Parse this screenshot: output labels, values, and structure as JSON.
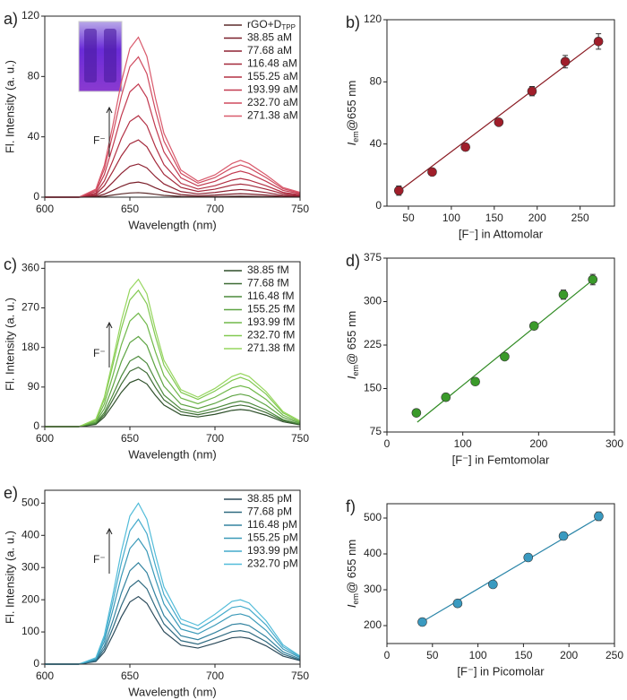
{
  "chart_data": [
    {
      "type": "line",
      "panel": "a)",
      "x_label": "Wavelength (nm)",
      "y_label": "Fl. Intensity (a. u.)",
      "annotation": "F⁻",
      "x": [
        600,
        620,
        630,
        635,
        640,
        645,
        650,
        655,
        660,
        665,
        670,
        680,
        690,
        700,
        710,
        715,
        720,
        730,
        740,
        750
      ],
      "xlim": [
        600,
        750
      ],
      "xticks": [
        600,
        650,
        700,
        750
      ],
      "ylim": [
        0,
        120
      ],
      "yticks": [
        0,
        40,
        80,
        120
      ],
      "series": [
        {
          "name": "rGO+D",
          "name_sub": "TPP",
          "color": "#5b2b2b",
          "values": [
            0,
            0,
            0.2,
            0.6,
            1.4,
            2.2,
            2.8,
            3,
            2.6,
            1.9,
            1.2,
            0.5,
            0.3,
            0.4,
            0.6,
            0.7,
            0.6,
            0.4,
            0.2,
            0.1
          ]
        },
        {
          "name": "38.85 aM",
          "color": "#7a1f2a",
          "values": [
            0,
            0,
            0.5,
            2,
            4.5,
            7.2,
            9.3,
            10,
            8.8,
            6.2,
            4,
            1.7,
            1,
            1.4,
            2.1,
            2.3,
            2.1,
            1.4,
            0.6,
            0.3
          ]
        },
        {
          "name": "77.68 aM",
          "color": "#8e2232",
          "values": [
            0,
            0,
            1.1,
            4.4,
            9.9,
            15.8,
            20.5,
            22,
            19.4,
            13.6,
            8.8,
            3.7,
            2.2,
            3.1,
            4.6,
            5.1,
            4.6,
            3.1,
            1.3,
            0.7
          ]
        },
        {
          "name": "116.48 aM",
          "color": "#a3283a",
          "values": [
            0,
            0,
            1.9,
            7.6,
            17.1,
            27.4,
            35.3,
            38,
            33.4,
            23.6,
            15.2,
            6.5,
            3.8,
            5.3,
            8,
            8.7,
            8,
            5.3,
            2.3,
            1.1
          ]
        },
        {
          "name": "155.25 aM",
          "color": "#b33044",
          "values": [
            0,
            0,
            2.7,
            10.8,
            24.3,
            38.9,
            50.2,
            54,
            47.5,
            33.5,
            21.6,
            9.2,
            5.4,
            7.6,
            11.3,
            12.4,
            11.3,
            7.6,
            3.2,
            1.6
          ]
        },
        {
          "name": "193.99 aM",
          "color": "#c23a50",
          "values": [
            0,
            0,
            3.8,
            15,
            33.8,
            54,
            69.8,
            75,
            66,
            46.5,
            30,
            12.8,
            7.5,
            10.5,
            15.8,
            17.3,
            15.8,
            10.5,
            4.5,
            2.3
          ]
        },
        {
          "name": "232.70 aM",
          "color": "#cf4a5e",
          "values": [
            0,
            0,
            4.7,
            18.6,
            41.9,
            67,
            86.5,
            93,
            81.8,
            57.7,
            37.2,
            15.8,
            9.3,
            13,
            19.5,
            21.4,
            19.5,
            13,
            5.6,
            2.8
          ]
        },
        {
          "name": "271.38 aM",
          "color": "#d95a6c",
          "values": [
            0,
            0,
            5.3,
            21.2,
            47.7,
            76.3,
            98.6,
            106,
            93.3,
            65.7,
            42.4,
            18,
            10.6,
            14.8,
            22.3,
            24.4,
            22.3,
            14.8,
            6.4,
            3.2
          ]
        }
      ]
    },
    {
      "type": "scatter",
      "panel": "b)",
      "x_label": "[F⁻] in Attomolar",
      "y_label": {
        "italic": "I",
        "sub": "em",
        "rest": "@655 nm"
      },
      "xlim": [
        25,
        290
      ],
      "xticks": [
        50,
        100,
        150,
        200,
        250
      ],
      "ylim": [
        0,
        120
      ],
      "yticks": [
        0,
        40,
        80,
        120
      ],
      "x": [
        38.85,
        77.68,
        116.48,
        155.25,
        193.99,
        232.7,
        271.38
      ],
      "series": [
        {
          "color": "#a01e2a",
          "values": [
            10,
            22,
            38,
            54,
            74,
            93,
            106
          ],
          "errors": [
            3,
            2,
            2,
            2,
            3,
            4,
            5
          ]
        }
      ],
      "fit": {
        "color": "#8a1a22",
        "x": [
          35,
          275
        ],
        "y": [
          8,
          108
        ]
      }
    },
    {
      "type": "line",
      "panel": "c)",
      "x_label": "Wavelength (nm)",
      "y_label": "Fl. Intensity (a. u.)",
      "annotation": "F⁻",
      "x": [
        600,
        620,
        630,
        635,
        640,
        645,
        650,
        655,
        660,
        665,
        670,
        680,
        690,
        700,
        710,
        715,
        720,
        730,
        740,
        750
      ],
      "xlim": [
        600,
        750
      ],
      "xticks": [
        600,
        650,
        700,
        750
      ],
      "ylim": [
        0,
        375
      ],
      "yticks": [
        0,
        90,
        180,
        270,
        360
      ],
      "series": [
        {
          "name": "38.85 fM",
          "color": "#2e4f2a",
          "values": [
            0,
            0,
            5,
            22,
            49,
            78,
            100,
            108,
            97,
            71,
            49,
            27,
            22,
            28,
            37,
            39,
            37,
            26,
            11,
            4
          ]
        },
        {
          "name": "77.68 fM",
          "color": "#3d6b34",
          "values": [
            0,
            0,
            7,
            27,
            61,
            97,
            126,
            135,
            122,
            89,
            61,
            34,
            27,
            35,
            46,
            49,
            46,
            32,
            14,
            5
          ]
        },
        {
          "name": "116.48 fM",
          "color": "#4c8a3c",
          "values": [
            0,
            0,
            8,
            32,
            72,
            115,
            149,
            160,
            144,
            106,
            72,
            40,
            32,
            42,
            54,
            58,
            54,
            38,
            16,
            6
          ]
        },
        {
          "name": "155.25 fM",
          "color": "#5ea443",
          "values": [
            0,
            0,
            10,
            41,
            92,
            148,
            191,
            205,
            185,
            135,
            92,
            51,
            41,
            53,
            70,
            74,
            70,
            49,
            21,
            8
          ]
        },
        {
          "name": "193.99 fM",
          "color": "#70b84a",
          "values": [
            0,
            0,
            13,
            52,
            116,
            186,
            240,
            258,
            232,
            170,
            116,
            65,
            52,
            67,
            88,
            93,
            88,
            62,
            26,
            10
          ]
        },
        {
          "name": "232.70 fM",
          "color": "#82c951",
          "values": [
            0,
            0,
            16,
            62,
            140,
            223,
            288,
            310,
            279,
            205,
            140,
            78,
            62,
            81,
            105,
            112,
            105,
            74,
            31,
            12
          ]
        },
        {
          "name": "271.38 fM",
          "color": "#96d65e",
          "values": [
            0,
            0,
            17,
            67,
            151,
            241,
            312,
            335,
            302,
            221,
            151,
            84,
            67,
            87,
            114,
            121,
            114,
            80,
            34,
            13
          ]
        }
      ]
    },
    {
      "type": "scatter",
      "panel": "d)",
      "x_label": "[F⁻] in Femtomolar",
      "y_label": {
        "italic": "I",
        "sub": "em",
        "rest": "@ 655 nm"
      },
      "xlim": [
        0,
        300
      ],
      "xticks": [
        0,
        100,
        200,
        300
      ],
      "ylim": [
        75,
        375
      ],
      "yticks": [
        75,
        150,
        225,
        300,
        375
      ],
      "x": [
        38.85,
        77.68,
        116.48,
        155.25,
        193.99,
        232.7,
        271.38
      ],
      "series": [
        {
          "color": "#3a9a2a",
          "values": [
            108,
            135,
            162,
            205,
            258,
            312,
            338
          ],
          "errors": [
            3,
            4,
            4,
            4,
            4,
            8,
            9
          ]
        }
      ],
      "fit": {
        "color": "#2f8a22",
        "x": [
          40,
          272
        ],
        "y": [
          92,
          338
        ]
      }
    },
    {
      "type": "line",
      "panel": "e)",
      "x_label": "Wavelength (nm)",
      "y_label": "Fl. Intensity (a. u.)",
      "annotation": "F⁻",
      "x": [
        600,
        620,
        630,
        635,
        640,
        645,
        650,
        655,
        660,
        665,
        670,
        680,
        690,
        700,
        710,
        715,
        720,
        730,
        740,
        750
      ],
      "xlim": [
        600,
        750
      ],
      "xticks": [
        600,
        650,
        700,
        750
      ],
      "ylim": [
        0,
        540
      ],
      "yticks": [
        0,
        100,
        200,
        300,
        400,
        500
      ],
      "series": [
        {
          "name": "38.85 pM",
          "color": "#2b4a5a",
          "values": [
            0,
            0,
            8,
            38,
            90,
            147,
            193,
            210,
            189,
            143,
            101,
            59,
            50,
            65,
            82,
            84,
            80,
            57,
            25,
            11
          ]
        },
        {
          "name": "77.68 pM",
          "color": "#2f6a80",
          "values": [
            0,
            0,
            10,
            47,
            112,
            182,
            239,
            260,
            234,
            177,
            125,
            73,
            62,
            81,
            101,
            104,
            99,
            70,
            31,
            13
          ]
        },
        {
          "name": "116.48 pM",
          "color": "#3383a0",
          "values": [
            0,
            0,
            13,
            57,
            135,
            221,
            290,
            315,
            284,
            214,
            151,
            88,
            76,
            98,
            123,
            126,
            120,
            85,
            38,
            16
          ]
        },
        {
          "name": "155.25 pM",
          "color": "#3a99b8",
          "values": [
            0,
            0,
            16,
            70,
            168,
            273,
            359,
            390,
            351,
            265,
            187,
            109,
            94,
            121,
            152,
            156,
            148,
            105,
            47,
            20
          ]
        },
        {
          "name": "193.99 pM",
          "color": "#44aacb",
          "values": [
            0,
            0,
            18,
            81,
            194,
            315,
            414,
            450,
            405,
            306,
            216,
            126,
            108,
            140,
            176,
            180,
            171,
            122,
            54,
            23
          ]
        },
        {
          "name": "232.70 pM",
          "color": "#52bcd9",
          "values": [
            0,
            0,
            20,
            90,
            215,
            350,
            460,
            500,
            450,
            340,
            240,
            140,
            120,
            155,
            195,
            200,
            190,
            135,
            60,
            25
          ]
        }
      ]
    },
    {
      "type": "scatter",
      "panel": "f)",
      "x_label": "[F⁻] in Picomolar",
      "y_label": {
        "italic": "I",
        "sub": "em",
        "rest": "@ 655 nm"
      },
      "xlim": [
        0,
        250
      ],
      "xticks": [
        0,
        50,
        100,
        150,
        200,
        250
      ],
      "ylim": [
        150,
        540
      ],
      "yticks": [
        200,
        300,
        400,
        500
      ],
      "x": [
        38.85,
        77.68,
        116.48,
        155.25,
        193.99,
        232.7
      ],
      "series": [
        {
          "color": "#3a9ac0",
          "values": [
            210,
            262,
            315,
            390,
            450,
            505
          ],
          "errors": [
            4,
            5,
            6,
            8,
            10,
            12
          ]
        }
      ],
      "fit": {
        "color": "#2a85a8",
        "x": [
          35,
          235
        ],
        "y": [
          205,
          505
        ]
      }
    }
  ]
}
